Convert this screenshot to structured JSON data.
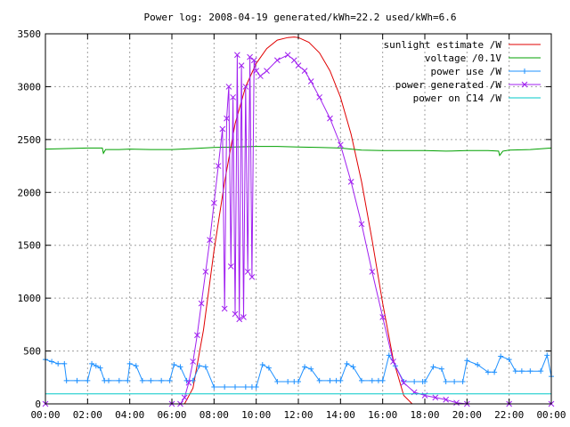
{
  "chart_data": {
    "type": "line",
    "title": "Power log: 2008-04-19 generated/kWh=22.2 used/kWh=6.6",
    "xlabel": "",
    "ylabel": "",
    "xlim": [
      0,
      24
    ],
    "ylim": [
      0,
      3500
    ],
    "grid": true,
    "legend_position": "top-right",
    "x_tick_labels": [
      "00:00",
      "02:00",
      "04:00",
      "06:00",
      "08:00",
      "10:00",
      "12:00",
      "14:00",
      "16:00",
      "18:00",
      "20:00",
      "22:00",
      "00:00"
    ],
    "y_ticks": [
      0,
      500,
      1000,
      1500,
      2000,
      2500,
      3000,
      3500
    ],
    "series": [
      {
        "name": "sunlight estimate /W",
        "color": "#e00000",
        "style": "line",
        "x": [
          6.6,
          7.0,
          7.5,
          8.0,
          8.5,
          9.0,
          9.5,
          10.0,
          10.5,
          11.0,
          11.5,
          11.8,
          12.0,
          12.5,
          13.0,
          13.5,
          14.0,
          14.5,
          15.0,
          15.5,
          16.0,
          16.5,
          17.0,
          17.4
        ],
        "y": [
          0,
          150,
          700,
          1450,
          2100,
          2650,
          3000,
          3220,
          3360,
          3440,
          3465,
          3470,
          3465,
          3420,
          3320,
          3150,
          2900,
          2550,
          2100,
          1550,
          950,
          420,
          80,
          0
        ]
      },
      {
        "name": "voltage /0.1V",
        "color": "#00a000",
        "style": "line",
        "x": [
          0,
          1.0,
          2.0,
          2.7,
          2.75,
          2.85,
          3.5,
          4.0,
          5.0,
          6.0,
          7.0,
          8.0,
          9.0,
          10.0,
          11.0,
          12.0,
          13.0,
          14.0,
          14.5,
          15.0,
          16.0,
          17.0,
          18.0,
          19.0,
          20.0,
          21.0,
          21.5,
          21.55,
          21.7,
          22.0,
          23.0,
          24.0
        ],
        "y": [
          2410,
          2415,
          2420,
          2420,
          2370,
          2405,
          2405,
          2410,
          2405,
          2405,
          2415,
          2425,
          2430,
          2435,
          2435,
          2430,
          2425,
          2420,
          2410,
          2400,
          2395,
          2395,
          2395,
          2390,
          2395,
          2395,
          2390,
          2350,
          2390,
          2400,
          2405,
          2420
        ]
      },
      {
        "name": "power use /W",
        "color": "#1e90ff",
        "style": "linepoints",
        "x": [
          0,
          0.3,
          0.6,
          0.9,
          1.0,
          1.5,
          2.0,
          2.2,
          2.4,
          2.6,
          2.8,
          3.0,
          3.5,
          3.9,
          4.0,
          4.3,
          4.6,
          5.0,
          5.5,
          5.9,
          6.1,
          6.4,
          6.7,
          7.0,
          7.3,
          7.6,
          8.0,
          8.5,
          9.0,
          9.5,
          9.8,
          10.0,
          10.3,
          10.6,
          11.0,
          11.5,
          11.8,
          12.0,
          12.3,
          12.6,
          13.0,
          13.5,
          13.8,
          14.0,
          14.3,
          14.6,
          15.0,
          15.5,
          15.8,
          16.0,
          16.3,
          16.6,
          17.0,
          17.5,
          17.9,
          18.0,
          18.4,
          18.8,
          19.0,
          19.4,
          19.8,
          20.0,
          20.5,
          21.0,
          21.3,
          21.6,
          22.0,
          22.3,
          22.6,
          23.0,
          23.5,
          23.8,
          24.0
        ],
        "y": [
          420,
          400,
          380,
          380,
          220,
          220,
          220,
          380,
          360,
          340,
          220,
          220,
          220,
          220,
          380,
          360,
          220,
          220,
          220,
          220,
          370,
          350,
          220,
          220,
          360,
          350,
          160,
          160,
          160,
          160,
          160,
          160,
          370,
          340,
          210,
          210,
          210,
          210,
          350,
          330,
          220,
          220,
          220,
          220,
          380,
          350,
          220,
          220,
          220,
          220,
          460,
          360,
          210,
          210,
          210,
          210,
          350,
          330,
          210,
          210,
          210,
          410,
          370,
          300,
          300,
          450,
          420,
          310,
          310,
          310,
          310,
          460,
          260
        ]
      },
      {
        "name": "power generated /W",
        "color": "#a020f0",
        "style": "linepoints",
        "x": [
          0,
          6.0,
          6.4,
          6.6,
          6.8,
          7.0,
          7.2,
          7.4,
          7.6,
          7.8,
          8.0,
          8.2,
          8.4,
          8.5,
          8.6,
          8.7,
          8.8,
          8.9,
          9.0,
          9.1,
          9.2,
          9.3,
          9.4,
          9.5,
          9.6,
          9.7,
          9.8,
          9.9,
          10.0,
          10.2,
          10.5,
          11.0,
          11.5,
          11.8,
          12.0,
          12.3,
          12.6,
          13.0,
          13.5,
          14.0,
          14.5,
          15.0,
          15.5,
          16.0,
          16.5,
          17.0,
          17.5,
          18.0,
          18.5,
          19.0,
          19.5,
          20.0,
          22.0,
          24.0
        ],
        "y": [
          0,
          0,
          0,
          60,
          200,
          400,
          650,
          950,
          1250,
          1550,
          1900,
          2250,
          2600,
          900,
          2700,
          3000,
          1300,
          2900,
          850,
          3300,
          800,
          3200,
          820,
          3000,
          1250,
          3280,
          1200,
          3250,
          3150,
          3100,
          3150,
          3250,
          3300,
          3250,
          3200,
          3150,
          3050,
          2900,
          2700,
          2450,
          2100,
          1700,
          1250,
          820,
          400,
          200,
          110,
          80,
          60,
          40,
          10,
          0,
          0,
          0
        ]
      },
      {
        "name": "power on C14 /W",
        "color": "#00c8c8",
        "style": "line",
        "x": [
          0,
          24
        ],
        "y": [
          95,
          95
        ]
      }
    ]
  }
}
